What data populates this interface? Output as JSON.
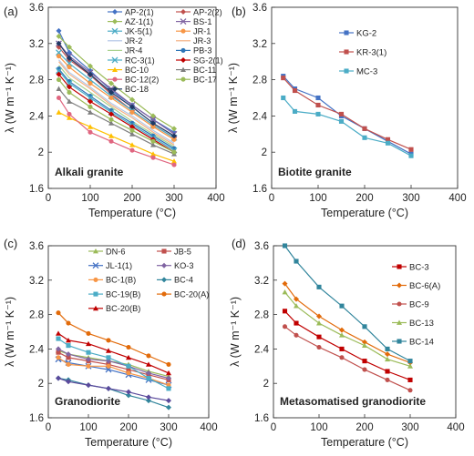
{
  "chart_data": [
    {
      "type": "line",
      "panel_label": "(a)",
      "annotation": "Alkali granite",
      "xlabel": "Temperature (°C)",
      "ylabel": "λ (W m⁻¹ K⁻¹)",
      "xlim": [
        0,
        400
      ],
      "ylim": [
        1.6,
        3.6
      ],
      "xticks": [
        0,
        100,
        200,
        300,
        400
      ],
      "yticks": [
        1.6,
        2,
        2.4,
        2.8,
        3.2,
        3.6
      ],
      "grid": false,
      "legend_position": "top-right",
      "legend_columns": 2,
      "x": [
        25,
        50,
        100,
        150,
        200,
        250,
        300
      ],
      "series": [
        {
          "name": "AP-2(1)",
          "color": "#4472c4",
          "marker": "diamond",
          "values": [
            3.34,
            3.1,
            2.9,
            2.68,
            2.52,
            2.36,
            2.22
          ]
        },
        {
          "name": "AP-2(2)",
          "color": "#c0504d",
          "marker": "diamond",
          "values": [
            3.16,
            3.02,
            2.85,
            2.64,
            2.46,
            2.3,
            2.16
          ]
        },
        {
          "name": "AZ-1(1)",
          "color": "#9bbb59",
          "marker": "diamond",
          "values": [
            3.28,
            3.16,
            2.95,
            2.76,
            2.58,
            2.4,
            2.26
          ]
        },
        {
          "name": "BS-1",
          "color": "#8064a2",
          "marker": "x",
          "values": [
            3.2,
            3.06,
            2.88,
            2.7,
            2.52,
            2.36,
            2.2
          ]
        },
        {
          "name": "JK-5(1)",
          "color": "#4bacc6",
          "marker": "x",
          "values": [
            3.1,
            2.98,
            2.8,
            2.62,
            2.46,
            2.3,
            2.16
          ]
        },
        {
          "name": "JR-1",
          "color": "#f79646",
          "marker": "circle",
          "values": [
            3.06,
            2.94,
            2.76,
            2.6,
            2.44,
            2.28,
            2.14
          ]
        },
        {
          "name": "JR-2",
          "color": "#b4c7e7",
          "marker": "line",
          "values": [
            3.02,
            2.88,
            2.72,
            2.54,
            2.4,
            2.24,
            2.1
          ]
        },
        {
          "name": "JR-3",
          "color": "#f4b183",
          "marker": "line",
          "values": [
            3.0,
            2.86,
            2.7,
            2.52,
            2.38,
            2.22,
            2.08
          ]
        },
        {
          "name": "JR-4",
          "color": "#a9d18e",
          "marker": "line",
          "values": [
            2.96,
            2.82,
            2.66,
            2.5,
            2.34,
            2.2,
            2.06
          ]
        },
        {
          "name": "PB-3",
          "color": "#2e75b6",
          "marker": "circle",
          "values": [
            2.92,
            2.78,
            2.62,
            2.46,
            2.32,
            2.18,
            2.04
          ]
        },
        {
          "name": "RC-3(1)",
          "color": "#4bacc6",
          "marker": "x",
          "values": [
            2.9,
            2.76,
            2.6,
            2.44,
            2.3,
            2.16,
            2.02
          ]
        },
        {
          "name": "SG-2(1)",
          "color": "#c00000",
          "marker": "diamond",
          "values": [
            2.86,
            2.72,
            2.56,
            2.42,
            2.28,
            2.14,
            2.0
          ]
        },
        {
          "name": "BC-10",
          "color": "#ffc000",
          "marker": "triangle",
          "values": [
            2.44,
            2.38,
            2.28,
            2.18,
            2.08,
            1.98,
            1.9
          ]
        },
        {
          "name": "BC-11",
          "color": "#7f7f7f",
          "marker": "triangle",
          "values": [
            2.7,
            2.56,
            2.44,
            2.32,
            2.2,
            2.08,
            1.98
          ]
        },
        {
          "name": "BC-12(2)",
          "color": "#e06680",
          "marker": "circle",
          "values": [
            2.6,
            2.42,
            2.22,
            2.12,
            2.02,
            1.94,
            1.86
          ]
        },
        {
          "name": "BC-17",
          "color": "#9bbb59",
          "marker": "circle",
          "values": [
            2.8,
            2.66,
            2.5,
            2.36,
            2.24,
            2.12,
            2.0
          ]
        },
        {
          "name": "BC-18",
          "color": "#1f3864",
          "marker": "diamond",
          "values": [
            3.2,
            3.04,
            2.86,
            2.66,
            2.5,
            2.32,
            2.18
          ]
        }
      ]
    },
    {
      "type": "line",
      "panel_label": "(b)",
      "annotation": "Biotite granite",
      "xlabel": "Temperature (°C)",
      "ylabel": "λ (W m⁻¹ K⁻¹)",
      "xlim": [
        0,
        400
      ],
      "ylim": [
        1.6,
        3.6
      ],
      "xticks": [
        0,
        100,
        200,
        300,
        400
      ],
      "yticks": [
        1.6,
        2,
        2.4,
        2.8,
        3.2,
        3.6
      ],
      "grid": false,
      "legend_position": "top-right",
      "legend_columns": 1,
      "x": [
        25,
        50,
        100,
        150,
        200,
        250,
        300
      ],
      "series": [
        {
          "name": "KG-2",
          "color": "#4472c4",
          "marker": "square",
          "values": [
            2.84,
            2.7,
            2.6,
            2.4,
            2.26,
            2.12,
            1.98
          ]
        },
        {
          "name": "KR-3(1)",
          "color": "#c0504d",
          "marker": "square",
          "values": [
            2.82,
            2.68,
            2.52,
            2.42,
            2.26,
            2.14,
            2.03
          ]
        },
        {
          "name": "MC-3",
          "color": "#4bacc6",
          "marker": "square",
          "values": [
            2.6,
            2.45,
            2.42,
            2.34,
            2.16,
            2.1,
            1.96
          ]
        }
      ]
    },
    {
      "type": "line",
      "panel_label": "(c)",
      "annotation": "Granodiorite",
      "xlabel": "Temperature (°C)",
      "ylabel": "λ (W m⁻¹ K⁻¹)",
      "xlim": [
        0,
        400
      ],
      "ylim": [
        1.6,
        3.6
      ],
      "xticks": [
        0,
        100,
        200,
        300,
        400
      ],
      "yticks": [
        1.6,
        2,
        2.4,
        2.8,
        3.2,
        3.6
      ],
      "grid": false,
      "legend_position": "top",
      "legend_columns": 2,
      "x": [
        25,
        50,
        100,
        150,
        200,
        250,
        300
      ],
      "series": [
        {
          "name": "DN-6",
          "color": "#9bbb59",
          "marker": "triangle",
          "values": [
            2.38,
            2.34,
            2.3,
            2.26,
            2.22,
            2.14,
            2.08
          ]
        },
        {
          "name": "JB-5",
          "color": "#c0504d",
          "marker": "square",
          "values": [
            2.36,
            2.3,
            2.26,
            2.22,
            2.16,
            2.1,
            2.04
          ]
        },
        {
          "name": "JL-1(1)",
          "color": "#4472c4",
          "marker": "x",
          "values": [
            2.28,
            2.24,
            2.2,
            2.16,
            2.1,
            2.04,
            1.98
          ]
        },
        {
          "name": "KO-3",
          "color": "#8064a2",
          "marker": "diamond",
          "values": [
            2.4,
            2.34,
            2.28,
            2.26,
            2.2,
            2.12,
            2.06
          ]
        },
        {
          "name": "BC-1(B)",
          "color": "#f79646",
          "marker": "circle",
          "values": [
            2.3,
            2.22,
            2.2,
            2.2,
            2.12,
            2.06,
            1.98
          ]
        },
        {
          "name": "BC-4",
          "color": "#31859c",
          "marker": "diamond",
          "values": [
            2.06,
            2.04,
            1.98,
            1.94,
            1.86,
            1.8,
            1.72
          ]
        },
        {
          "name": "BC-19(B)",
          "color": "#4bacc6",
          "marker": "square",
          "values": [
            2.52,
            2.44,
            2.36,
            2.3,
            2.2,
            2.06,
            1.94
          ]
        },
        {
          "name": "BC-20(A)",
          "color": "#e26b0a",
          "marker": "circle",
          "values": [
            2.82,
            2.7,
            2.58,
            2.5,
            2.42,
            2.32,
            2.22
          ]
        },
        {
          "name": "BC-20(B)",
          "color": "#c00000",
          "marker": "triangle",
          "values": [
            2.58,
            2.5,
            2.46,
            2.38,
            2.3,
            2.22,
            2.12
          ]
        },
        {
          "name": "",
          "color": "#5b4a9c",
          "marker": "diamond",
          "values": [
            2.06,
            2.02,
            1.98,
            1.94,
            1.9,
            1.84,
            1.8
          ]
        }
      ]
    },
    {
      "type": "line",
      "panel_label": "(d)",
      "annotation": "Metasomatised granodiorite",
      "xlabel": "Temperature (°C)",
      "ylabel": "λ (W m⁻¹ K⁻¹)",
      "xlim": [
        0,
        400
      ],
      "ylim": [
        1.6,
        3.6
      ],
      "xticks": [
        0,
        100,
        200,
        300,
        400
      ],
      "yticks": [
        1.6,
        2,
        2.4,
        2.8,
        3.2,
        3.6
      ],
      "grid": false,
      "legend_position": "top-right",
      "legend_columns": 1,
      "x": [
        25,
        50,
        100,
        150,
        200,
        250,
        300
      ],
      "series": [
        {
          "name": "BC-3",
          "color": "#c00000",
          "marker": "square",
          "values": [
            2.84,
            2.7,
            2.54,
            2.4,
            2.26,
            2.14,
            2.04
          ]
        },
        {
          "name": "BC-6(A)",
          "color": "#e26b0a",
          "marker": "diamond",
          "values": [
            3.16,
            2.98,
            2.78,
            2.62,
            2.48,
            2.34,
            2.24
          ]
        },
        {
          "name": "BC-9",
          "color": "#c0504d",
          "marker": "circle",
          "values": [
            2.66,
            2.56,
            2.42,
            2.3,
            2.16,
            2.04,
            1.92
          ]
        },
        {
          "name": "BC-13",
          "color": "#9bbb59",
          "marker": "triangle",
          "values": [
            3.06,
            2.9,
            2.7,
            2.56,
            2.44,
            2.28,
            2.2
          ]
        },
        {
          "name": "BC-14",
          "color": "#31859c",
          "marker": "square",
          "values": [
            3.6,
            3.42,
            3.12,
            2.9,
            2.66,
            2.4,
            2.26
          ]
        }
      ]
    }
  ]
}
